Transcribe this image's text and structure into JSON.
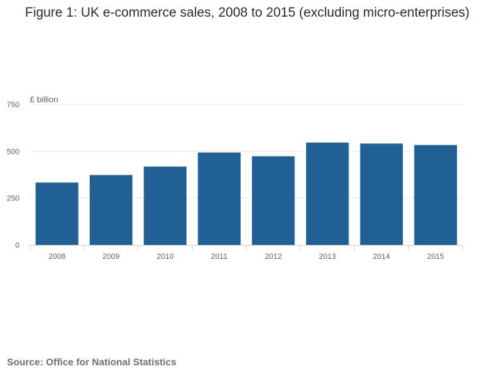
{
  "title": "Figure 1: UK e-commerce sales, 2008 to 2015 (excluding micro-enterprises)",
  "source": "Source: Office for National Statistics",
  "chart_data": {
    "type": "bar",
    "title": "Figure 1: UK e-commerce sales, 2008 to 2015 (excluding micro-enterprises)",
    "ylabel": "£ billion",
    "xlabel": "",
    "categories": [
      "2008",
      "2009",
      "2010",
      "2011",
      "2012",
      "2013",
      "2014",
      "2015"
    ],
    "values": [
      333,
      373,
      418,
      493,
      473,
      546,
      541,
      533
    ],
    "ylim": [
      0,
      750
    ],
    "yticks": [
      0,
      250,
      500,
      750
    ],
    "ytick_labels": [
      "0",
      "250",
      "500",
      "750"
    ],
    "grid": true,
    "bar_color": "#206095",
    "grid_color": "#e8e8e8"
  }
}
